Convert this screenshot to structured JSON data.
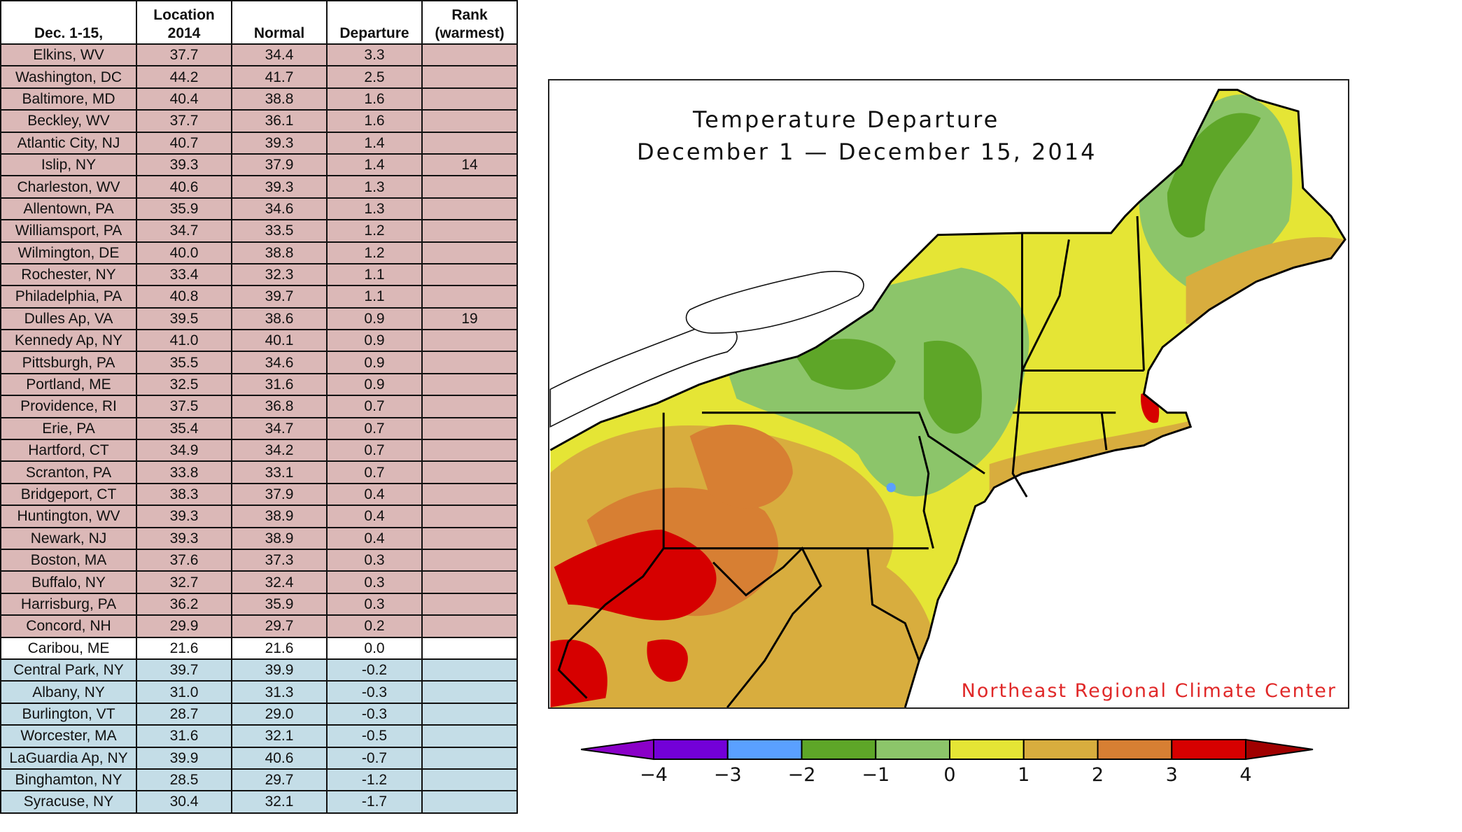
{
  "chart_data": {
    "type": "table",
    "columns": [
      "Location",
      "Dec. 1-15, 2014",
      "Normal",
      "Departure",
      "Rank (warmest)"
    ],
    "header_lines": [
      [
        "",
        "Dec. 1-15,"
      ],
      [
        "Location",
        "2014"
      ],
      [
        "",
        "Normal"
      ],
      [
        "",
        "Departure"
      ],
      [
        "Rank",
        "(warmest)"
      ]
    ],
    "rows": [
      [
        "Elkins, WV",
        "37.7",
        "34.4",
        "3.3",
        ""
      ],
      [
        "Washington, DC",
        "44.2",
        "41.7",
        "2.5",
        ""
      ],
      [
        "Baltimore, MD",
        "40.4",
        "38.8",
        "1.6",
        ""
      ],
      [
        "Beckley, WV",
        "37.7",
        "36.1",
        "1.6",
        ""
      ],
      [
        "Atlantic City, NJ",
        "40.7",
        "39.3",
        "1.4",
        ""
      ],
      [
        "Islip, NY",
        "39.3",
        "37.9",
        "1.4",
        "14"
      ],
      [
        "Charleston, WV",
        "40.6",
        "39.3",
        "1.3",
        ""
      ],
      [
        "Allentown, PA",
        "35.9",
        "34.6",
        "1.3",
        ""
      ],
      [
        "Williamsport, PA",
        "34.7",
        "33.5",
        "1.2",
        ""
      ],
      [
        "Wilmington, DE",
        "40.0",
        "38.8",
        "1.2",
        ""
      ],
      [
        "Rochester, NY",
        "33.4",
        "32.3",
        "1.1",
        ""
      ],
      [
        "Philadelphia, PA",
        "40.8",
        "39.7",
        "1.1",
        ""
      ],
      [
        "Dulles Ap, VA",
        "39.5",
        "38.6",
        "0.9",
        "19"
      ],
      [
        "Kennedy Ap, NY",
        "41.0",
        "40.1",
        "0.9",
        ""
      ],
      [
        "Pittsburgh, PA",
        "35.5",
        "34.6",
        "0.9",
        ""
      ],
      [
        "Portland, ME",
        "32.5",
        "31.6",
        "0.9",
        ""
      ],
      [
        "Providence, RI",
        "37.5",
        "36.8",
        "0.7",
        ""
      ],
      [
        "Erie, PA",
        "35.4",
        "34.7",
        "0.7",
        ""
      ],
      [
        "Hartford, CT",
        "34.9",
        "34.2",
        "0.7",
        ""
      ],
      [
        "Scranton, PA",
        "33.8",
        "33.1",
        "0.7",
        ""
      ],
      [
        "Bridgeport, CT",
        "38.3",
        "37.9",
        "0.4",
        ""
      ],
      [
        "Huntington, WV",
        "39.3",
        "38.9",
        "0.4",
        ""
      ],
      [
        "Newark, NJ",
        "39.3",
        "38.9",
        "0.4",
        ""
      ],
      [
        "Boston, MA",
        "37.6",
        "37.3",
        "0.3",
        ""
      ],
      [
        "Buffalo, NY",
        "32.7",
        "32.4",
        "0.3",
        ""
      ],
      [
        "Harrisburg, PA",
        "36.2",
        "35.9",
        "0.3",
        ""
      ],
      [
        "Concord, NH",
        "29.9",
        "29.7",
        "0.2",
        ""
      ],
      [
        "Caribou, ME",
        "21.6",
        "21.6",
        "0.0",
        ""
      ],
      [
        "Central Park, NY",
        "39.7",
        "39.9",
        "-0.2",
        ""
      ],
      [
        "Albany, NY",
        "31.0",
        "31.3",
        "-0.3",
        ""
      ],
      [
        "Burlington, VT",
        "28.7",
        "29.0",
        "-0.3",
        ""
      ],
      [
        "Worcester, MA",
        "31.6",
        "32.1",
        "-0.5",
        ""
      ],
      [
        "LaGuardia Ap, NY",
        "39.9",
        "40.6",
        "-0.7",
        ""
      ],
      [
        "Binghamton, NY",
        "28.5",
        "29.7",
        "-1.2",
        ""
      ],
      [
        "Syracuse, NY",
        "30.4",
        "32.1",
        "-1.7",
        ""
      ]
    ],
    "row_colors": {
      "warm": "#dbb8b7",
      "neutral": "#ffffff",
      "cool": "#c4dde7"
    }
  },
  "map": {
    "title": "Temperature Departure",
    "subtitle": "December 1 — December 15, 2014",
    "credit": "Northeast Regional Climate Center",
    "legend": {
      "ticks": [
        "−4",
        "−3",
        "−2",
        "−1",
        "0",
        "1",
        "2",
        "3",
        "4"
      ],
      "below_color": "#8a00c8",
      "above_color": "#a00000",
      "bins": [
        "#7300d8",
        "#5aa0ff",
        "#5ea628",
        "#8cc56a",
        "#e5e535",
        "#d8ad3e",
        "#d77f33",
        "#d60000"
      ]
    }
  }
}
